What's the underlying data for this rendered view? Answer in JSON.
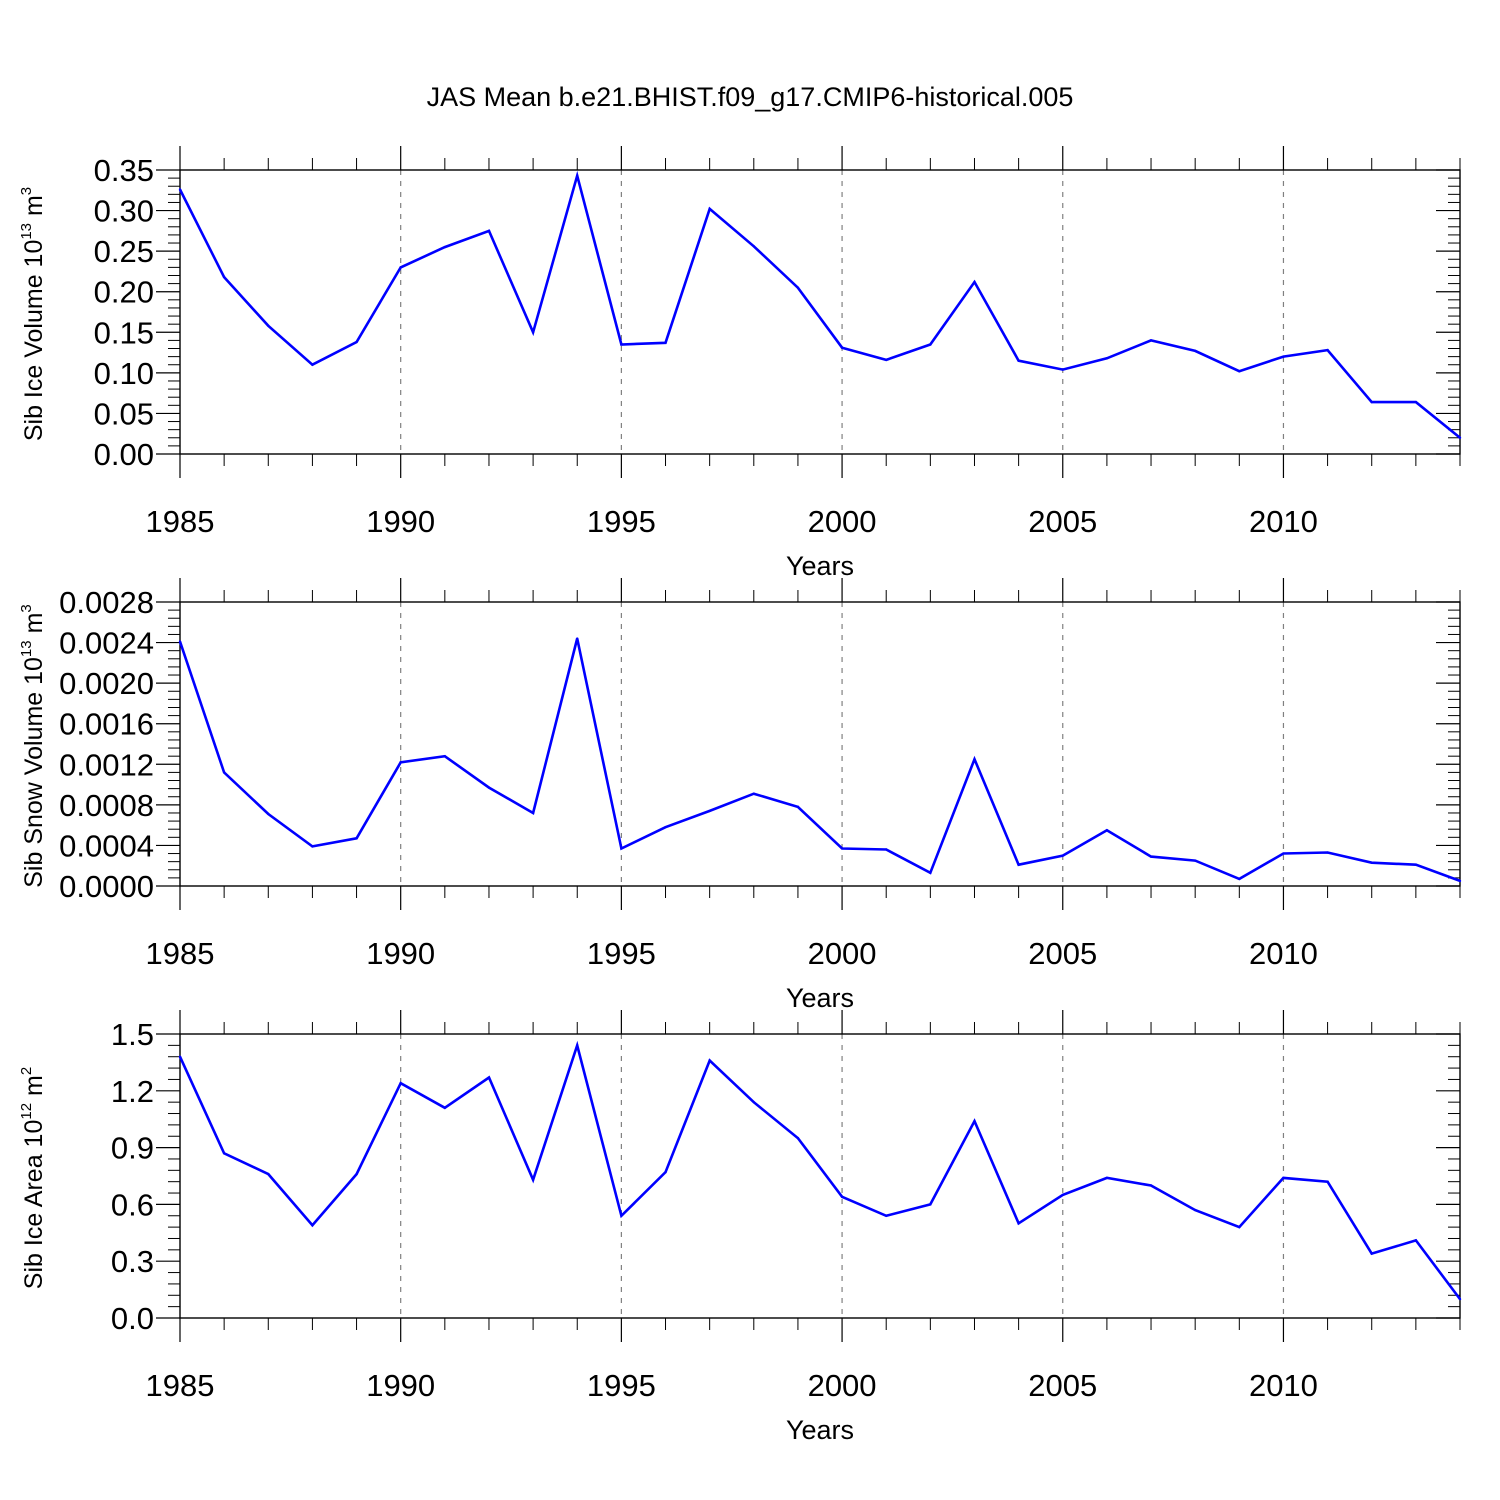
{
  "title": "JAS Mean b.e21.BHIST.f09_g17.CMIP6-historical.005",
  "colors": {
    "line": "#0000ff",
    "axis": "#000000",
    "grid": "#808080",
    "background": "#ffffff"
  },
  "chart_data": [
    {
      "type": "line",
      "title": "JAS Mean b.e21.BHIST.f09_g17.CMIP6-historical.005",
      "xlabel": "Years",
      "ylabel": {
        "main": "Sib Ice Volume 10",
        "exp": "13",
        "unit": " m",
        "unit_exp": "3"
      },
      "xlim": [
        1985,
        2014
      ],
      "xticks": [
        1985,
        1990,
        1995,
        2000,
        2005,
        2010
      ],
      "xtick_labels": [
        "1985",
        "1990",
        "1995",
        "2000",
        "2005",
        "2010"
      ],
      "ylim": [
        0,
        0.35
      ],
      "yticks": [
        0,
        0.05,
        0.1,
        0.15,
        0.2,
        0.25,
        0.3,
        0.35
      ],
      "ytick_labels": [
        "0.00",
        "0.05",
        "0.10",
        "0.15",
        "0.20",
        "0.25",
        "0.30",
        "0.35"
      ],
      "grid": "vertical dashed at major x ticks",
      "x": [
        1985,
        1986,
        1987,
        1988,
        1989,
        1990,
        1991,
        1992,
        1993,
        1994,
        1995,
        1996,
        1997,
        1998,
        1999,
        2000,
        2001,
        2002,
        2003,
        2004,
        2005,
        2006,
        2007,
        2008,
        2009,
        2010,
        2011,
        2012,
        2013,
        2014
      ],
      "series": [
        {
          "name": "Sib Ice Volume",
          "values": [
            0.326,
            0.218,
            0.158,
            0.11,
            0.138,
            0.23,
            0.255,
            0.275,
            0.15,
            0.343,
            0.135,
            0.137,
            0.302,
            0.256,
            0.205,
            0.131,
            0.116,
            0.135,
            0.212,
            0.115,
            0.104,
            0.118,
            0.14,
            0.127,
            0.102,
            0.12,
            0.128,
            0.064,
            0.064,
            0.02
          ]
        }
      ]
    },
    {
      "type": "line",
      "xlabel": "Years",
      "ylabel": {
        "main": "Sib Snow Volume 10",
        "exp": "13",
        "unit": " m",
        "unit_exp": "3"
      },
      "xlim": [
        1985,
        2014
      ],
      "xticks": [
        1985,
        1990,
        1995,
        2000,
        2005,
        2010
      ],
      "xtick_labels": [
        "1985",
        "1990",
        "1995",
        "2000",
        "2005",
        "2010"
      ],
      "ylim": [
        0,
        0.0028
      ],
      "yticks": [
        0,
        0.0004,
        0.0008,
        0.0012,
        0.0016,
        0.002,
        0.0024,
        0.0028
      ],
      "ytick_labels": [
        "0.0000",
        "0.0004",
        "0.0008",
        "0.0012",
        "0.0016",
        "0.0020",
        "0.0024",
        "0.0028"
      ],
      "grid": "vertical dashed at major x ticks",
      "x": [
        1985,
        1986,
        1987,
        1988,
        1989,
        1990,
        1991,
        1992,
        1993,
        1994,
        1995,
        1996,
        1997,
        1998,
        1999,
        2000,
        2001,
        2002,
        2003,
        2004,
        2005,
        2006,
        2007,
        2008,
        2009,
        2010,
        2011,
        2012,
        2013,
        2014
      ],
      "series": [
        {
          "name": "Sib Snow Volume",
          "values": [
            0.00241,
            0.00112,
            0.00071,
            0.00039,
            0.00047,
            0.00122,
            0.00128,
            0.00097,
            0.00072,
            0.00244,
            0.00037,
            0.00058,
            0.00074,
            0.00091,
            0.00078,
            0.00037,
            0.00036,
            0.00013,
            0.00125,
            0.00021,
            0.0003,
            0.00055,
            0.00029,
            0.00025,
            7e-05,
            0.00032,
            0.00033,
            0.00023,
            0.00021,
            5e-05
          ]
        }
      ]
    },
    {
      "type": "line",
      "xlabel": "Years",
      "ylabel": {
        "main": "Sib Ice Area 10",
        "exp": "12",
        "unit": " m",
        "unit_exp": "2"
      },
      "xlim": [
        1985,
        2014
      ],
      "xticks": [
        1985,
        1990,
        1995,
        2000,
        2005,
        2010
      ],
      "xtick_labels": [
        "1985",
        "1990",
        "1995",
        "2000",
        "2005",
        "2010"
      ],
      "ylim": [
        0,
        1.5
      ],
      "yticks": [
        0,
        0.3,
        0.6,
        0.9,
        1.2,
        1.5
      ],
      "ytick_labels": [
        "0.0",
        "0.3",
        "0.6",
        "0.9",
        "1.2",
        "1.5"
      ],
      "grid": "vertical dashed at major x ticks",
      "x": [
        1985,
        1986,
        1987,
        1988,
        1989,
        1990,
        1991,
        1992,
        1993,
        1994,
        1995,
        1996,
        1997,
        1998,
        1999,
        2000,
        2001,
        2002,
        2003,
        2004,
        2005,
        2006,
        2007,
        2008,
        2009,
        2010,
        2011,
        2012,
        2013,
        2014
      ],
      "series": [
        {
          "name": "Sib Ice Area",
          "values": [
            1.38,
            0.87,
            0.76,
            0.49,
            0.76,
            1.24,
            1.11,
            1.27,
            0.73,
            1.44,
            0.54,
            0.77,
            1.36,
            1.14,
            0.95,
            0.64,
            0.54,
            0.6,
            1.04,
            0.5,
            0.65,
            0.74,
            0.7,
            0.57,
            0.48,
            0.74,
            0.72,
            0.34,
            0.41,
            0.1
          ]
        }
      ]
    }
  ]
}
